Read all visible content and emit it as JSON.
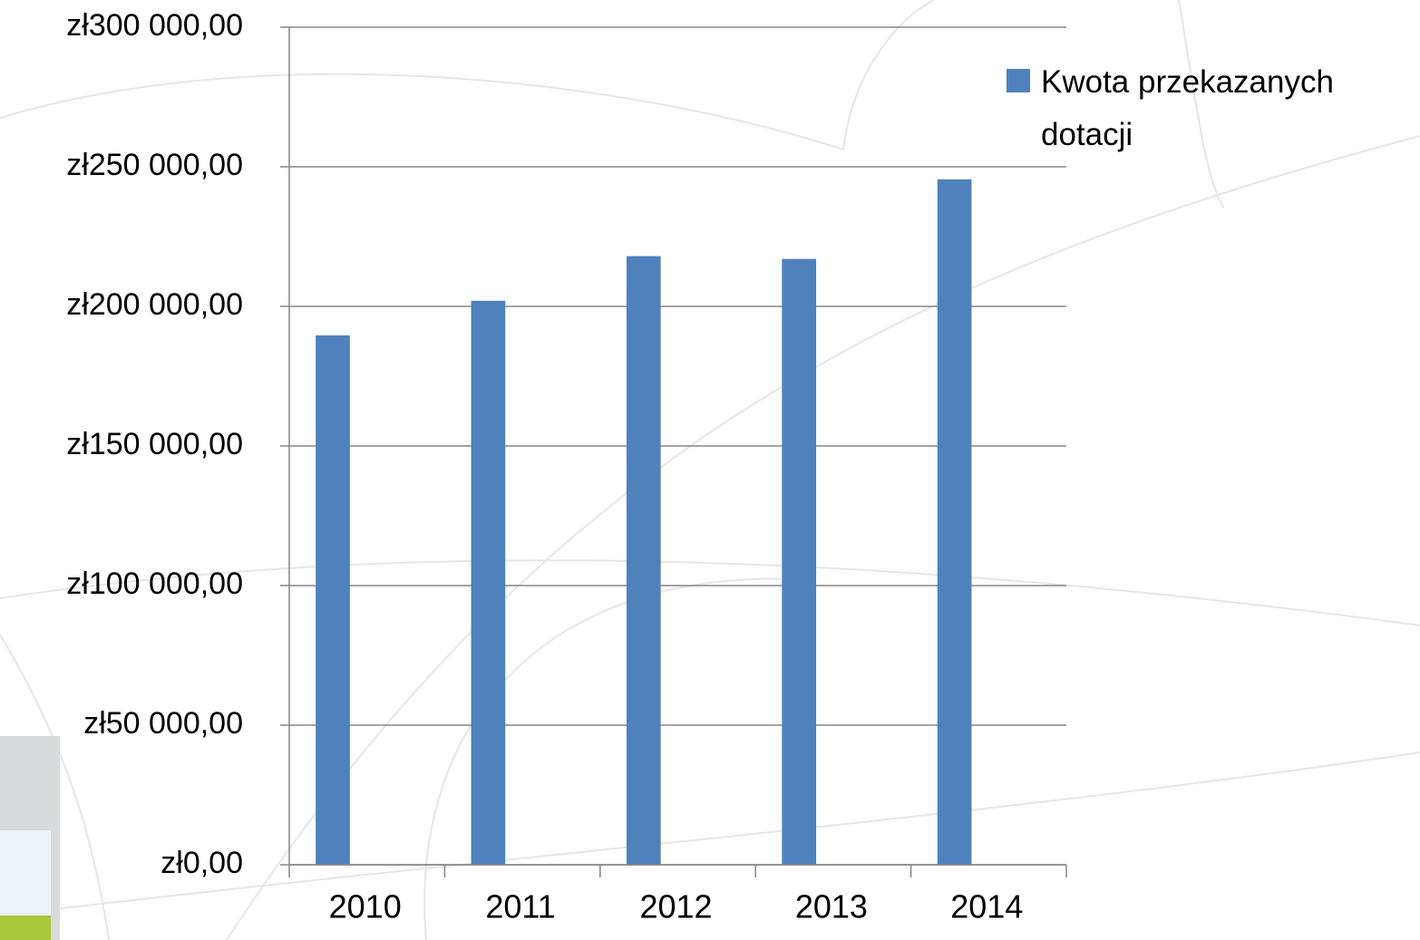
{
  "chart_data": {
    "type": "bar",
    "categories": [
      "2010",
      "2011",
      "2012",
      "2013",
      "2014"
    ],
    "series": [
      {
        "name": "Kwota przekazanych dotacji",
        "color": "#4f81bd",
        "values": [
          189600,
          202000,
          218000,
          217000,
          245500
        ]
      }
    ],
    "ylim": [
      0,
      300000
    ],
    "yticks": [
      {
        "value": 0,
        "label": "zł0,00"
      },
      {
        "value": 50000,
        "label": "zł50 000,00"
      },
      {
        "value": 100000,
        "label": "zł100 000,00"
      },
      {
        "value": 150000,
        "label": "zł150 000,00"
      },
      {
        "value": 200000,
        "label": "zł200 000,00"
      },
      {
        "value": 250000,
        "label": "zł250 000,00"
      },
      {
        "value": 300000,
        "label": "zł300 000,00"
      }
    ],
    "grid": true,
    "legend_position": "right"
  }
}
